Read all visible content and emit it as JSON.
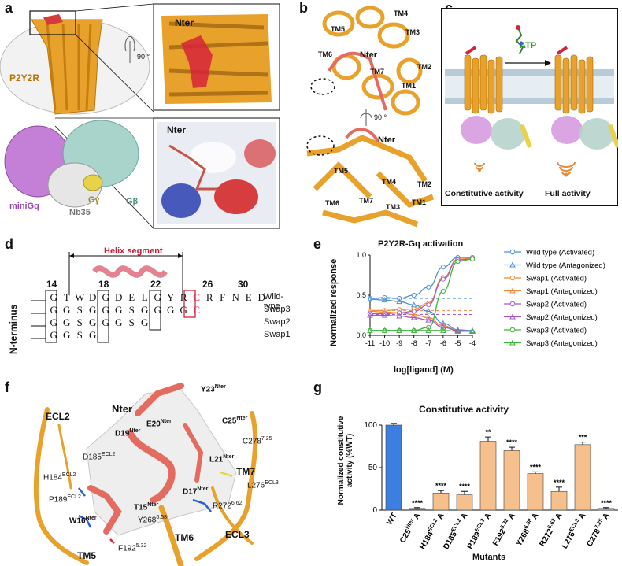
{
  "panels": {
    "a": "a",
    "b": "b",
    "c": "c",
    "d": "d",
    "e": "e",
    "f": "f",
    "g": "g"
  },
  "panel_a": {
    "rotation": "90 °",
    "nter_top": "Nter",
    "nter_bottom": "Nter",
    "p2y2r": "P2Y2R",
    "minigq": "miniGq",
    "gbeta": "Gβ",
    "ggamma": "Gγ",
    "nb35": "Nb35"
  },
  "panel_b": {
    "top_labels": [
      "TM5",
      "TM4",
      "TM3",
      "TM6",
      "TM2",
      "TM7",
      "TM1"
    ],
    "top_nter": "Nter",
    "rotation": "90 °",
    "bottom_nter": "Nter",
    "bottom_labels": [
      "TM5",
      "TM4",
      "TM2",
      "TM6",
      "TM7",
      "TM3",
      "TM1"
    ]
  },
  "panel_c": {
    "atp": "ATP",
    "left_caption": "Constitutive activity",
    "right_caption": "Full activity"
  },
  "panel_d": {
    "helix_label": "Helix segment",
    "numbers": [
      "14",
      "18",
      "22",
      "26",
      "30"
    ],
    "axis_label": "N-terminus",
    "rows": [
      {
        "name": "Wild-type",
        "seq": [
          "G",
          "T",
          "W",
          "D",
          "G",
          "D",
          "E",
          "L",
          "G",
          "Y",
          "R",
          "C",
          "R",
          "F",
          "N",
          "E",
          "D"
        ]
      },
      {
        "name": "Swap3",
        "seq": [
          "G",
          "G",
          "S",
          "G",
          "G",
          "G",
          "S",
          "G",
          "G",
          "G",
          "G",
          "C"
        ]
      },
      {
        "name": "Swap2",
        "seq": [
          "G",
          "G",
          "S",
          "G",
          "G",
          "G",
          "S",
          "G"
        ]
      },
      {
        "name": "Swap1",
        "seq": [
          "G",
          "G",
          "S",
          "G"
        ]
      }
    ]
  },
  "panel_e": {
    "chart_data": {
      "type": "line",
      "title": "P2Y2R-Gq activation",
      "xlabel": "log[ligand] (M)",
      "ylabel": "Normalized response",
      "xlim": [
        -11,
        -4
      ],
      "ylim": [
        0,
        1.0
      ],
      "xticks": [
        "-11",
        "-10",
        "-9",
        "-8",
        "-7",
        "-6",
        "-5",
        "-4"
      ],
      "yticks": [
        "0.0",
        "0.5",
        "1.0"
      ],
      "legend_position": "right",
      "x": [
        -11,
        -10,
        -9,
        -8,
        -7,
        -6,
        -5,
        -4
      ],
      "series": [
        {
          "name": "Wild type (Activated)",
          "color": "#4a90d9",
          "marker": "circle",
          "values": [
            0.46,
            0.47,
            0.46,
            0.5,
            0.6,
            0.85,
            0.97,
            0.97
          ]
        },
        {
          "name": "Wild type (Antagonized)",
          "color": "#4a90d9",
          "marker": "triangle",
          "values": [
            0.45,
            0.44,
            0.42,
            0.38,
            0.3,
            0.15,
            0.07,
            0.06
          ]
        },
        {
          "name": "Swap1 (Activated)",
          "color": "#f08a3a",
          "marker": "circle",
          "values": [
            0.31,
            0.31,
            0.32,
            0.33,
            0.4,
            0.72,
            0.95,
            0.96
          ]
        },
        {
          "name": "Swap1 (Antagonized)",
          "color": "#f08a3a",
          "marker": "triangle",
          "values": [
            0.3,
            0.29,
            0.28,
            0.26,
            0.22,
            0.12,
            0.06,
            0.05
          ]
        },
        {
          "name": "Swap2 (Activated)",
          "color": "#a259c8",
          "marker": "circle",
          "values": [
            0.27,
            0.27,
            0.28,
            0.3,
            0.38,
            0.7,
            0.94,
            0.95
          ]
        },
        {
          "name": "Swap2 (Antagonized)",
          "color": "#a259c8",
          "marker": "triangle",
          "values": [
            0.25,
            0.25,
            0.24,
            0.22,
            0.19,
            0.1,
            0.06,
            0.05
          ]
        },
        {
          "name": "Swap3 (Activated)",
          "color": "#3bb53b",
          "marker": "circle",
          "values": [
            0.06,
            0.06,
            0.06,
            0.06,
            0.1,
            0.55,
            0.92,
            0.95
          ]
        },
        {
          "name": "Swap3 (Antagonized)",
          "color": "#3bb53b",
          "marker": "triangle",
          "values": [
            0.06,
            0.06,
            0.06,
            0.06,
            0.06,
            0.06,
            0.05,
            0.05
          ]
        }
      ],
      "baselines": [
        {
          "color": "#4a90d9",
          "y": 0.46
        },
        {
          "color": "#f08a3a",
          "y": 0.31
        },
        {
          "color": "#a259c8",
          "y": 0.26
        },
        {
          "color": "#3bb53b",
          "y": 0.06
        }
      ]
    }
  },
  "panel_f": {
    "labels": {
      "ecl2": "ECL2",
      "nter": "Nter",
      "y23": "Y23",
      "y23s": "Nter",
      "e20": "E20",
      "e20s": "Nter",
      "d19": "D19",
      "d19s": "Nter",
      "c25": "C25",
      "c25s": "Nter",
      "c278": "C278",
      "c278s": "7.25",
      "d185": "D185",
      "d185s": "ECL2",
      "l21": "L21",
      "l21s": "Nter",
      "tm7": "TM7",
      "h184": "H184",
      "h184s": "ECL2",
      "l276": "L276",
      "l276s": "ECL3",
      "p189": "P189",
      "p189s": "ECL2",
      "d17": "D17",
      "d17s": "Nter",
      "r272": "R272",
      "r272s": "6.62",
      "t15": "T15",
      "t15s": "Nter",
      "w16": "W16",
      "w16s": "Nter",
      "y268": "Y268",
      "y268s": "6.58",
      "tm6": "TM6",
      "ecl3": "ECL3",
      "f192": "F192",
      "f192s": "5.32",
      "tm5": "TM5"
    }
  },
  "panel_g": {
    "chart_data": {
      "type": "bar",
      "title": "Constitutive activity",
      "xlabel": "Mutants",
      "ylabel": "Normalized constitutive activity (%WT)",
      "ylim": [
        0,
        100
      ],
      "yticks": [
        "0",
        "50",
        "100"
      ],
      "categories": [
        "WT",
        "C25Nter A",
        "H184ECL2 A",
        "D185ECL2 A",
        "P189ECL2 A",
        "F1925.32 A",
        "Y2686.58 A",
        "R2726.62 A",
        "L276ECL3 A",
        "C2787.25 A"
      ],
      "category_labels": [
        {
          "main": "WT",
          "sup": "",
          "tail": ""
        },
        {
          "main": "C25",
          "sup": "Nter",
          "tail": "A"
        },
        {
          "main": "H184",
          "sup": "ECL2",
          "tail": "A"
        },
        {
          "main": "D185",
          "sup": "ECL2",
          "tail": "A"
        },
        {
          "main": "P189",
          "sup": "ECL2",
          "tail": "A"
        },
        {
          "main": "F192",
          "sup": "5.32",
          "tail": "A"
        },
        {
          "main": "Y268",
          "sup": "6.58",
          "tail": "A"
        },
        {
          "main": "R272",
          "sup": "6.62",
          "tail": "A"
        },
        {
          "main": "L276",
          "sup": "ECL3",
          "tail": "A"
        },
        {
          "main": "C278",
          "sup": "7.25",
          "tail": "A"
        }
      ],
      "values": [
        100,
        2,
        20,
        18,
        81,
        70,
        43,
        22,
        77,
        2
      ],
      "errors": [
        2,
        1,
        3,
        4,
        5,
        4,
        2,
        5,
        3,
        1
      ],
      "significance": [
        "",
        "****",
        "****",
        "****",
        "**",
        "****",
        "****",
        "****",
        "***",
        "****"
      ],
      "colors": [
        "#3d7fe0",
        "#3d7fe0",
        "#f6c08c",
        "#f6c08c",
        "#f6c08c",
        "#f6c08c",
        "#f6c08c",
        "#f6c08c",
        "#f6c08c",
        "#f6c08c"
      ]
    }
  }
}
